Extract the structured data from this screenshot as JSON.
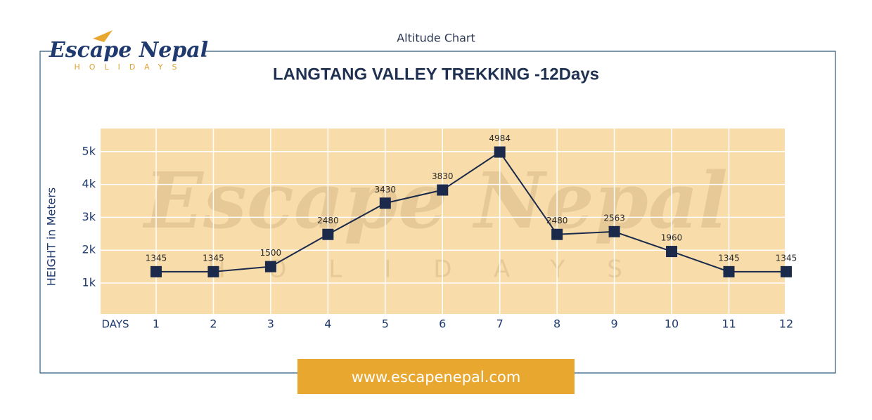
{
  "header": "Altitude Chart",
  "logo": {
    "name": "Escape Nepal",
    "tagline": "HOLIDAYS"
  },
  "footer_url": "www.escapenepal.com",
  "chart_data": {
    "type": "line",
    "title": "LANGTANG VALLEY TREKKING -12Days",
    "y_label": "HEIGHT in Meters",
    "x_label": "DAYS",
    "categories": [
      "1",
      "2",
      "3",
      "4",
      "5",
      "6",
      "7",
      "8",
      "9",
      "10",
      "11",
      "12"
    ],
    "series": [
      {
        "name": "Altitude",
        "color": "#1b2a4a",
        "values": [
          1345,
          1345,
          1500,
          2480,
          3430,
          3830,
          4984,
          2480,
          2563,
          1960,
          1345,
          1345
        ]
      }
    ],
    "ylim": [
      60,
      5700
    ],
    "yticks": [
      {
        "value": 1000,
        "label": "1k"
      },
      {
        "value": 2000,
        "label": "2k"
      },
      {
        "value": 3000,
        "label": "3k"
      },
      {
        "value": 4000,
        "label": "4k"
      },
      {
        "value": 5000,
        "label": "5k"
      }
    ],
    "grid": true,
    "background": "#f8dcaa"
  }
}
